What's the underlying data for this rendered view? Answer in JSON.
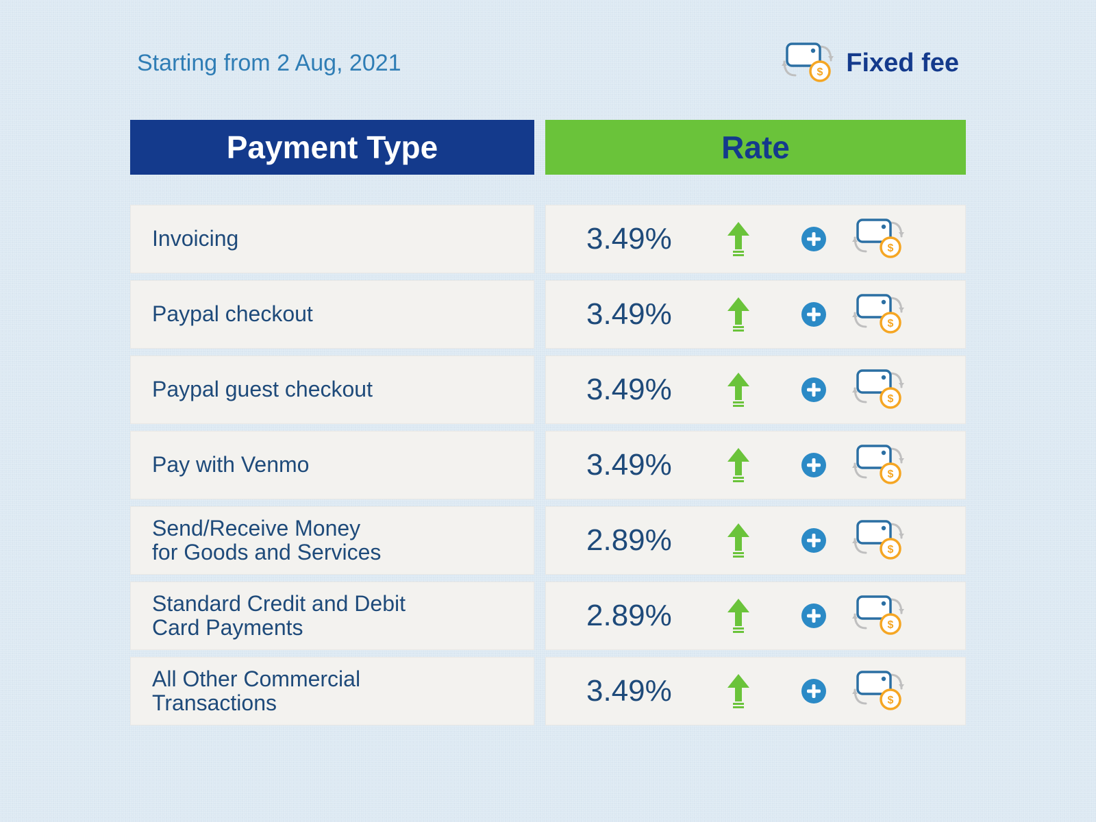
{
  "header": {
    "date_label": "Starting from 2 Aug, 2021",
    "legend_label": "Fixed fee"
  },
  "table": {
    "columns": {
      "payment_type": "Payment Type",
      "rate": "Rate"
    },
    "header_colors": {
      "left_bg": "#143a8c",
      "left_text": "#ffffff",
      "right_bg": "#6ac33a",
      "right_text": "#143a8c"
    },
    "row_bg": "#f3f2ef",
    "text_color": "#1e4a7a",
    "rows": [
      {
        "label": "Invoicing",
        "rate": "3.49%"
      },
      {
        "label": "Paypal checkout",
        "rate": "3.49%"
      },
      {
        "label": "Paypal guest checkout",
        "rate": "3.49%"
      },
      {
        "label": "Pay with Venmo",
        "rate": "3.49%"
      },
      {
        "label": "Send/Receive Money\nfor Goods and Services",
        "rate": "2.89%"
      },
      {
        "label": "Standard Credit and Debit\nCard Payments",
        "rate": "2.89%"
      },
      {
        "label": "All Other Commercial\nTransactions",
        "rate": "3.49%"
      }
    ]
  },
  "colors": {
    "page_bg": "#dbe8f2",
    "accent_blue": "#2f7db5",
    "brand_blue": "#143a8c",
    "arrow_green": "#6ac33a",
    "plus_blue": "#2b8ac6",
    "coin_orange": "#f5a623",
    "card_stroke": "#2b6fa3",
    "connector_gray": "#bfbfbf"
  },
  "typography": {
    "date_fontsize": 34,
    "legend_fontsize": 38,
    "header_fontsize": 46,
    "label_fontsize": 32,
    "rate_fontsize": 44
  },
  "icons": {
    "arrow_up": "arrow-up-icon",
    "plus_circle": "plus-circle-icon",
    "card_coin": "card-coin-icon"
  }
}
